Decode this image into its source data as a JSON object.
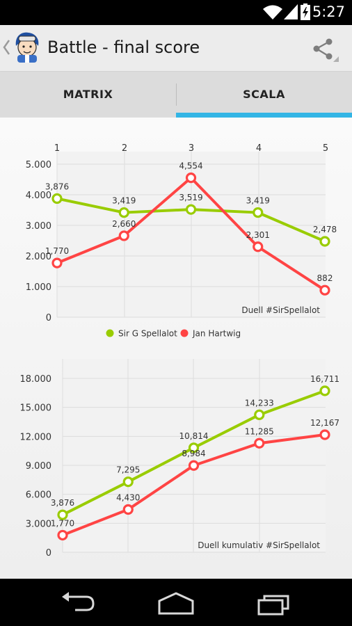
{
  "status_bar": {
    "time": "5:27"
  },
  "action_bar": {
    "title": "Battle - final score",
    "up_icon": "chevron-left",
    "share_icon": "share"
  },
  "tabs": [
    {
      "label": "MATRIX",
      "selected": false
    },
    {
      "label": "SCALA",
      "selected": true
    }
  ],
  "colors": {
    "series1": "#99cc00",
    "series2": "#ff4444",
    "accent": "#33b5e5"
  },
  "chart_data": [
    {
      "type": "line",
      "x": [
        1,
        2,
        3,
        4,
        5
      ],
      "x_tick_labels": [
        "1",
        "2",
        "3",
        "4",
        "5"
      ],
      "x_axis_position": "top",
      "ylim": [
        0,
        5000
      ],
      "y_ticks": [
        0,
        1000,
        2000,
        3000,
        4000,
        5000
      ],
      "y_tick_labels": [
        "0",
        "1.000",
        "2.000",
        "3.000",
        "4.000",
        "5.000"
      ],
      "annotation": "Duell #SirSpellalot",
      "legend_position": "bottom",
      "grid": true,
      "series": [
        {
          "name": "Sir G Spellalot",
          "color": "#99cc00",
          "values": [
            3876,
            3419,
            3519,
            3419,
            2478
          ],
          "labels": [
            "3,876",
            "3,419",
            "3,519",
            "3,419",
            "2,478"
          ]
        },
        {
          "name": "Jan Hartwig",
          "color": "#ff4444",
          "values": [
            1770,
            2660,
            4554,
            2301,
            882
          ],
          "labels": [
            "1,770",
            "2,660",
            "4,554",
            "2,301",
            "882"
          ]
        }
      ]
    },
    {
      "type": "line",
      "x": [
        1,
        2,
        3,
        4,
        5
      ],
      "ylim": [
        0,
        19000
      ],
      "y_ticks": [
        0,
        3000,
        6000,
        9000,
        12000,
        15000,
        18000
      ],
      "y_tick_labels": [
        "0",
        "3.000",
        "6.000",
        "9.000",
        "12.000",
        "15.000",
        "18.000"
      ],
      "annotation": "Duell kumulativ #SirSpellalot",
      "grid": true,
      "series": [
        {
          "color": "#99cc00",
          "values": [
            3876,
            7295,
            10814,
            14233,
            16711
          ],
          "labels": [
            "3,876",
            "7,295",
            "10,814",
            "14,233",
            "16,711"
          ]
        },
        {
          "color": "#ff4444",
          "values": [
            1770,
            4430,
            8984,
            11285,
            12167
          ],
          "labels": [
            "1,770",
            "4,430",
            "8,984",
            "11,285",
            "12,167"
          ]
        }
      ]
    }
  ]
}
